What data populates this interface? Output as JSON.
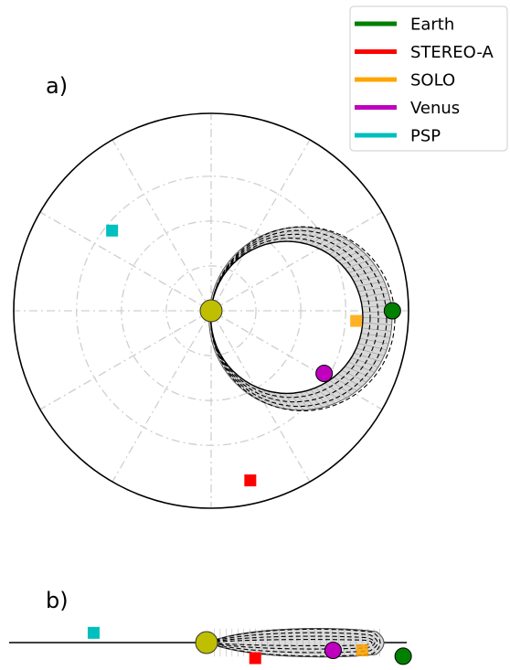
{
  "panel_labels": {
    "a": "a)",
    "b": "b)"
  },
  "legend": {
    "location": "top-right",
    "items": [
      {
        "label": "Earth",
        "color": "#008000"
      },
      {
        "label": "STEREO-A",
        "color": "#ff0000"
      },
      {
        "label": "SOLO",
        "color": "#ffa500"
      },
      {
        "label": "Venus",
        "color": "#bf00bf"
      },
      {
        "label": "PSP",
        "color": "#00bfbf"
      }
    ]
  },
  "chart_data": [
    {
      "type": "scatter",
      "panel": "a",
      "projection": "polar",
      "grid": true,
      "r_lim": [
        0,
        1.1
      ],
      "r_grid": [
        0.25,
        0.5,
        0.75
      ],
      "theta_grid_deg": [
        0,
        30,
        60,
        90,
        120,
        150,
        180,
        210,
        240,
        270,
        300,
        330
      ],
      "sun": {
        "r": 0,
        "theta_deg": 0,
        "color": "#bfbf00"
      },
      "cme_front": {
        "sun_side_inner_r": 0,
        "apex_r": 1.0,
        "apex_theta_deg": -5,
        "half_width_deg": 45
      },
      "series": [
        {
          "name": "Earth",
          "marker": "circle",
          "r": 1.01,
          "theta_deg": 0
        },
        {
          "name": "STEREO-A",
          "marker": "square",
          "r": 0.97,
          "theta_deg": -77
        },
        {
          "name": "SOLO",
          "marker": "square",
          "r": 0.81,
          "theta_deg": -4
        },
        {
          "name": "Venus",
          "marker": "circle",
          "r": 0.72,
          "theta_deg": -29
        },
        {
          "name": "PSP",
          "marker": "square",
          "r": 0.71,
          "theta_deg": 141
        }
      ]
    },
    {
      "type": "scatter",
      "panel": "b",
      "projection": "side-view",
      "grid": false,
      "series": [
        {
          "name": "Sun",
          "x": 0.0,
          "z": 0.0
        },
        {
          "name": "Earth",
          "x": 1.01,
          "z": -0.07
        },
        {
          "name": "STEREO-A",
          "x": 0.25,
          "z": -0.08
        },
        {
          "name": "SOLO",
          "x": 0.8,
          "z": -0.04
        },
        {
          "name": "Venus",
          "x": 0.65,
          "z": -0.04
        },
        {
          "name": "PSP",
          "x": -0.58,
          "z": 0.05
        }
      ]
    }
  ]
}
